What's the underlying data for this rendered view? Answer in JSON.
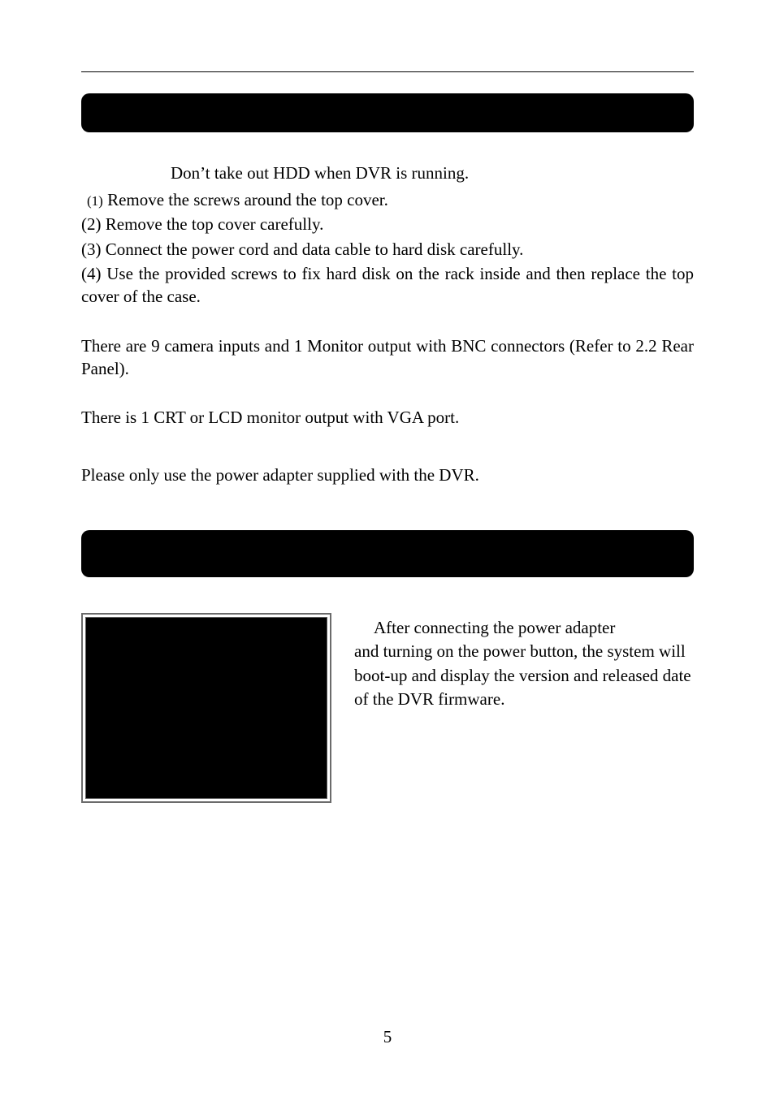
{
  "caution_line": "Don’t take out HDD when DVR is running.",
  "steps": {
    "s1_num": "(1)",
    "s1": " Remove the screws around the top cover.",
    "s2": "(2) Remove the top cover carefully.",
    "s3": "(3) Connect the power cord and data cable to hard disk carefully.",
    "s4": "(4) Use the provided screws to fix hard disk on the rack inside and then replace the top cover of the case."
  },
  "camera_paragraph": "There are 9 camera inputs and 1 Monitor output with BNC connectors (Refer to 2.2 Rear Panel).",
  "monitor_paragraph": "There is 1 CRT or LCD monitor output with VGA port.",
  "power_paragraph": "Please only use the power adapter supplied with the DVR.",
  "bootup": {
    "l1": "After connecting the power adapter",
    "l2": "and turning on the power button, the system will boot-up and display the version and released date of the DVR firmware."
  },
  "page_number": "5",
  "colors": {
    "text": "#000000",
    "background": "#ffffff",
    "bar": "#000000",
    "box_border": "#6b6b6b",
    "inner_border": "#5a5a5a"
  }
}
